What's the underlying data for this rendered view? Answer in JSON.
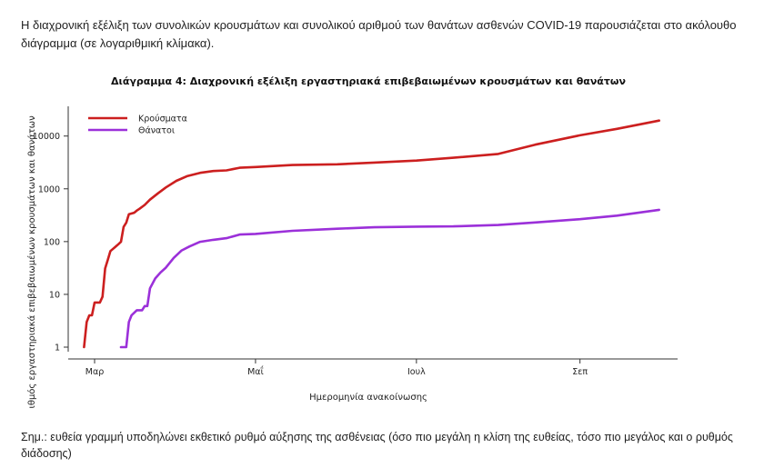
{
  "intro_text": "Η διαχρονική εξέλιξη των συνολικών κρουσμάτων και συνολικού αριθμού των θανάτων ασθενών COVID-19 παρουσιάζεται στο ακόλουθο διάγραμμα (σε λογαριθμική κλίμακα).",
  "note_text": "Σημ.: ευθεία γραμμή υποδηλώνει εκθετικό ρυθμό αύξησης της ασθένειας (όσο πιο μεγάλη η κλίση της ευθείας, τόσο πιο μεγάλος και ο ρυθμός διάδοσης)",
  "chart_data": {
    "type": "line",
    "title": "Διάγραμμα 4: Διαχρονική εξέλιξη εργαστηριακά επιβεβαιωμένων κρουσμάτων και θανάτων",
    "xlabel": "Ημερομηνία ανακοίνωσης",
    "ylabel": "Αριθμός εργαστηριακά επιβεβαιωμένων κρουσμάτων και θανάτων",
    "y_scale": "log",
    "ylim": [
      1,
      30000
    ],
    "yticks": [
      1,
      10,
      100,
      1000,
      10000
    ],
    "ytick_labels": [
      "1",
      "10",
      "100",
      "1000",
      "10000"
    ],
    "xlim": [
      "2020-02-20",
      "2020-10-08"
    ],
    "xticks": [
      "2020-03-01",
      "2020-05-01",
      "2020-07-01",
      "2020-09-01"
    ],
    "xtick_labels": [
      "Μαρ",
      "Μαΐ",
      "Ιουλ",
      "Σεπ"
    ],
    "grid": false,
    "legend_position": "top-left",
    "series": [
      {
        "name": "Κρούσματα",
        "color": "#cc1f1f",
        "points": [
          [
            "2020-02-26",
            1
          ],
          [
            "2020-02-27",
            3
          ],
          [
            "2020-02-28",
            4
          ],
          [
            "2020-02-29",
            4
          ],
          [
            "2020-03-01",
            7
          ],
          [
            "2020-03-03",
            7
          ],
          [
            "2020-03-04",
            9
          ],
          [
            "2020-03-05",
            31
          ],
          [
            "2020-03-06",
            45
          ],
          [
            "2020-03-07",
            66
          ],
          [
            "2020-03-08",
            73
          ],
          [
            "2020-03-10",
            89
          ],
          [
            "2020-03-11",
            99
          ],
          [
            "2020-03-12",
            190
          ],
          [
            "2020-03-13",
            228
          ],
          [
            "2020-03-14",
            331
          ],
          [
            "2020-03-16",
            352
          ],
          [
            "2020-03-17",
            387
          ],
          [
            "2020-03-18",
            418
          ],
          [
            "2020-03-20",
            495
          ],
          [
            "2020-03-22",
            624
          ],
          [
            "2020-03-25",
            821
          ],
          [
            "2020-03-28",
            1061
          ],
          [
            "2020-04-01",
            1415
          ],
          [
            "2020-04-05",
            1735
          ],
          [
            "2020-04-10",
            2011
          ],
          [
            "2020-04-15",
            2170
          ],
          [
            "2020-04-20",
            2235
          ],
          [
            "2020-04-25",
            2506
          ],
          [
            "2020-05-01",
            2591
          ],
          [
            "2020-05-15",
            2819
          ],
          [
            "2020-06-01",
            2917
          ],
          [
            "2020-06-15",
            3148
          ],
          [
            "2020-07-01",
            3432
          ],
          [
            "2020-07-15",
            3879
          ],
          [
            "2020-08-01",
            4587
          ],
          [
            "2020-08-15",
            6858
          ],
          [
            "2020-09-01",
            10317
          ],
          [
            "2020-09-15",
            13672
          ],
          [
            "2020-10-01",
            19613
          ]
        ]
      },
      {
        "name": "Θάνατοι",
        "color": "#9b30d9",
        "points": [
          [
            "2020-03-11",
            1
          ],
          [
            "2020-03-13",
            1
          ],
          [
            "2020-03-14",
            3
          ],
          [
            "2020-03-15",
            4
          ],
          [
            "2020-03-17",
            5
          ],
          [
            "2020-03-19",
            5
          ],
          [
            "2020-03-20",
            6
          ],
          [
            "2020-03-21",
            6
          ],
          [
            "2020-03-22",
            13
          ],
          [
            "2020-03-24",
            20
          ],
          [
            "2020-03-26",
            26
          ],
          [
            "2020-03-28",
            32
          ],
          [
            "2020-03-31",
            49
          ],
          [
            "2020-04-03",
            68
          ],
          [
            "2020-04-06",
            81
          ],
          [
            "2020-04-10",
            99
          ],
          [
            "2020-04-15",
            108
          ],
          [
            "2020-04-20",
            116
          ],
          [
            "2020-04-25",
            136
          ],
          [
            "2020-05-01",
            140
          ],
          [
            "2020-05-15",
            160
          ],
          [
            "2020-06-01",
            175
          ],
          [
            "2020-06-15",
            187
          ],
          [
            "2020-07-01",
            192
          ],
          [
            "2020-07-15",
            194
          ],
          [
            "2020-08-01",
            206
          ],
          [
            "2020-08-15",
            230
          ],
          [
            "2020-09-01",
            266
          ],
          [
            "2020-09-15",
            310
          ],
          [
            "2020-10-01",
            400
          ]
        ]
      }
    ]
  }
}
